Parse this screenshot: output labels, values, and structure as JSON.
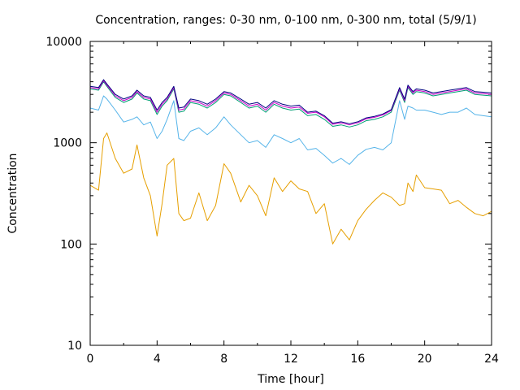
{
  "chart_data": {
    "type": "line",
    "title": "Concentration, ranges: 0-30 nm, 0-100 nm, 0-300 nm, total (5/9/1)",
    "xlabel": "Time [hour]",
    "ylabel": "Concentration",
    "xlim": [
      0,
      24
    ],
    "ylim": [
      10,
      10000
    ],
    "yscale": "log",
    "grid": false,
    "legend": "none",
    "xticks": [
      0,
      4,
      8,
      12,
      16,
      20,
      24
    ],
    "xtick_labels": [
      "0",
      "4",
      "8",
      "12",
      "16",
      "20",
      "24"
    ],
    "yticks": [
      10,
      100,
      1000,
      10000
    ],
    "ytick_labels": [
      "10",
      "100",
      "1000",
      "10000"
    ],
    "x": [
      0,
      0.5,
      0.8,
      1,
      1.5,
      2,
      2.5,
      2.8,
      3.2,
      3.6,
      4,
      4.3,
      4.6,
      5,
      5.3,
      5.6,
      6,
      6.5,
      7,
      7.5,
      8,
      8.4,
      9,
      9.5,
      10,
      10.5,
      11,
      11.5,
      12,
      12.5,
      13,
      13.5,
      14,
      14.5,
      15,
      15.5,
      16,
      16.5,
      17,
      17.5,
      18,
      18.5,
      18.8,
      19,
      19.3,
      19.5,
      20,
      20.5,
      21,
      21.5,
      22,
      22.5,
      23,
      23.5,
      24
    ],
    "series": [
      {
        "color": "#e69f00",
        "values": [
          380,
          340,
          1100,
          1250,
          700,
          500,
          550,
          950,
          450,
          300,
          120,
          250,
          600,
          700,
          200,
          170,
          180,
          320,
          170,
          240,
          620,
          500,
          260,
          380,
          300,
          190,
          450,
          330,
          420,
          350,
          330,
          200,
          250,
          100,
          140,
          110,
          170,
          220,
          270,
          320,
          290,
          240,
          250,
          400,
          330,
          480,
          360,
          350,
          340,
          250,
          270,
          230,
          200,
          190,
          210
        ]
      },
      {
        "color": "#56b4e9",
        "values": [
          2200,
          2100,
          2900,
          2700,
          2100,
          1600,
          1700,
          1800,
          1500,
          1600,
          1100,
          1300,
          1700,
          2600,
          1100,
          1050,
          1300,
          1400,
          1200,
          1400,
          1800,
          1500,
          1200,
          1000,
          1050,
          900,
          1200,
          1100,
          1000,
          1100,
          850,
          880,
          750,
          630,
          700,
          610,
          750,
          860,
          900,
          850,
          1000,
          2600,
          1700,
          2300,
          2200,
          2100,
          2100,
          2000,
          1900,
          2000,
          2000,
          2200,
          1900,
          1850,
          1800
        ]
      },
      {
        "color": "#009e73",
        "values": [
          3400,
          3300,
          4000,
          3600,
          2800,
          2500,
          2700,
          3100,
          2700,
          2600,
          1900,
          2300,
          2600,
          3400,
          2000,
          2050,
          2500,
          2400,
          2200,
          2500,
          3000,
          2900,
          2500,
          2200,
          2300,
          2000,
          2400,
          2200,
          2100,
          2150,
          1850,
          1900,
          1700,
          1450,
          1500,
          1430,
          1500,
          1650,
          1700,
          1800,
          2000,
          3300,
          2500,
          3500,
          3000,
          3200,
          3100,
          2900,
          3000,
          3100,
          3200,
          3300,
          3000,
          2950,
          2900
        ]
      },
      {
        "color": "#cc00cc",
        "values": [
          3500,
          3400,
          4100,
          3700,
          2900,
          2600,
          2800,
          3200,
          2800,
          2700,
          2000,
          2400,
          2700,
          3500,
          2100,
          2150,
          2600,
          2500,
          2300,
          2600,
          3100,
          3000,
          2600,
          2300,
          2400,
          2100,
          2500,
          2300,
          2200,
          2250,
          1950,
          2000,
          1800,
          1520,
          1570,
          1500,
          1570,
          1720,
          1780,
          1880,
          2080,
          3400,
          2600,
          3600,
          3100,
          3300,
          3200,
          3000,
          3100,
          3200,
          3300,
          3400,
          3100,
          3050,
          3000
        ]
      },
      {
        "color": "#000080",
        "values": [
          3600,
          3500,
          4200,
          3800,
          3000,
          2700,
          2900,
          3300,
          2900,
          2800,
          2100,
          2500,
          2800,
          3600,
          2200,
          2250,
          2700,
          2600,
          2400,
          2700,
          3200,
          3100,
          2700,
          2400,
          2500,
          2200,
          2600,
          2400,
          2300,
          2350,
          2000,
          2050,
          1850,
          1560,
          1610,
          1540,
          1610,
          1760,
          1820,
          1920,
          2120,
          3500,
          2700,
          3700,
          3200,
          3400,
          3300,
          3100,
          3200,
          3300,
          3400,
          3500,
          3200,
          3150,
          3100
        ]
      }
    ]
  }
}
